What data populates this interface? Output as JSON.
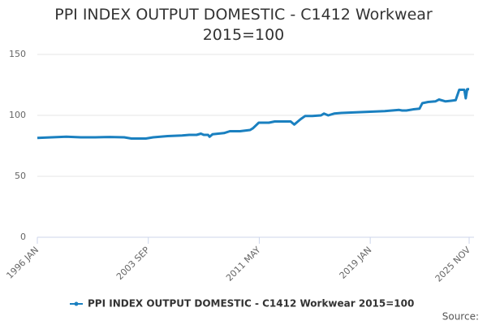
{
  "chart_data": {
    "type": "line",
    "title": "PPI INDEX OUTPUT DOMESTIC - C1412 Workwear 2015=100",
    "x": [
      1996.0,
      1997.0,
      1998.0,
      1999.0,
      2000.0,
      2001.0,
      2002.0,
      2002.5,
      2003.5,
      2004.0,
      2005.0,
      2006.0,
      2006.5,
      2007.0,
      2007.3,
      2007.5,
      2007.8,
      2007.9,
      2008.1,
      2008.5,
      2008.9,
      2009.3,
      2010.0,
      2010.7,
      2010.9,
      2011.3,
      2012.0,
      2012.4,
      2013.5,
      2013.75,
      2014.0,
      2014.2,
      2014.5,
      2015.0,
      2015.6,
      2015.8,
      2016.1,
      2016.5,
      2017.0,
      2018.0,
      2019.0,
      2020.0,
      2021.0,
      2021.2,
      2021.5,
      2022.0,
      2022.4,
      2022.6,
      2023.0,
      2023.5,
      2023.75,
      2024.2,
      2024.6,
      2024.9,
      2025.15,
      2025.5,
      2025.6,
      2025.7,
      2025.833
    ],
    "series": [
      {
        "name": "PPI INDEX OUTPUT DOMESTIC - C1412 Workwear 2015=100",
        "color": "#1a80c0",
        "values": [
          81.5,
          82,
          82.5,
          82,
          82,
          82.3,
          82,
          81,
          81,
          82,
          83,
          83.5,
          84,
          84,
          85,
          84,
          84,
          82.5,
          84.5,
          85,
          85.5,
          87,
          87,
          88,
          89.5,
          94,
          94,
          95,
          95,
          92.5,
          95,
          97,
          99.5,
          99.5,
          100,
          101.5,
          100,
          101.5,
          102,
          102.5,
          103,
          103.5,
          104.5,
          104,
          104,
          105,
          105.5,
          110,
          111,
          111.5,
          113,
          111.5,
          112,
          112.5,
          121,
          121,
          114,
          121.5,
          121.5
        ]
      }
    ],
    "xlim": [
      1996.0,
      2025.833
    ],
    "xticks": [
      {
        "value": 1996.0,
        "label": "1996 JAN"
      },
      {
        "value": 2003.667,
        "label": "2003 SEP"
      },
      {
        "value": 2011.333,
        "label": "2011 MAY"
      },
      {
        "value": 2019.0,
        "label": "2019 JAN"
      },
      {
        "value": 2025.833,
        "label": "2025 NOV"
      }
    ],
    "ylim": [
      0,
      150
    ],
    "yticks": [
      0,
      50,
      100,
      150
    ],
    "grid": true,
    "legend": "bottom",
    "source": "Source:"
  }
}
